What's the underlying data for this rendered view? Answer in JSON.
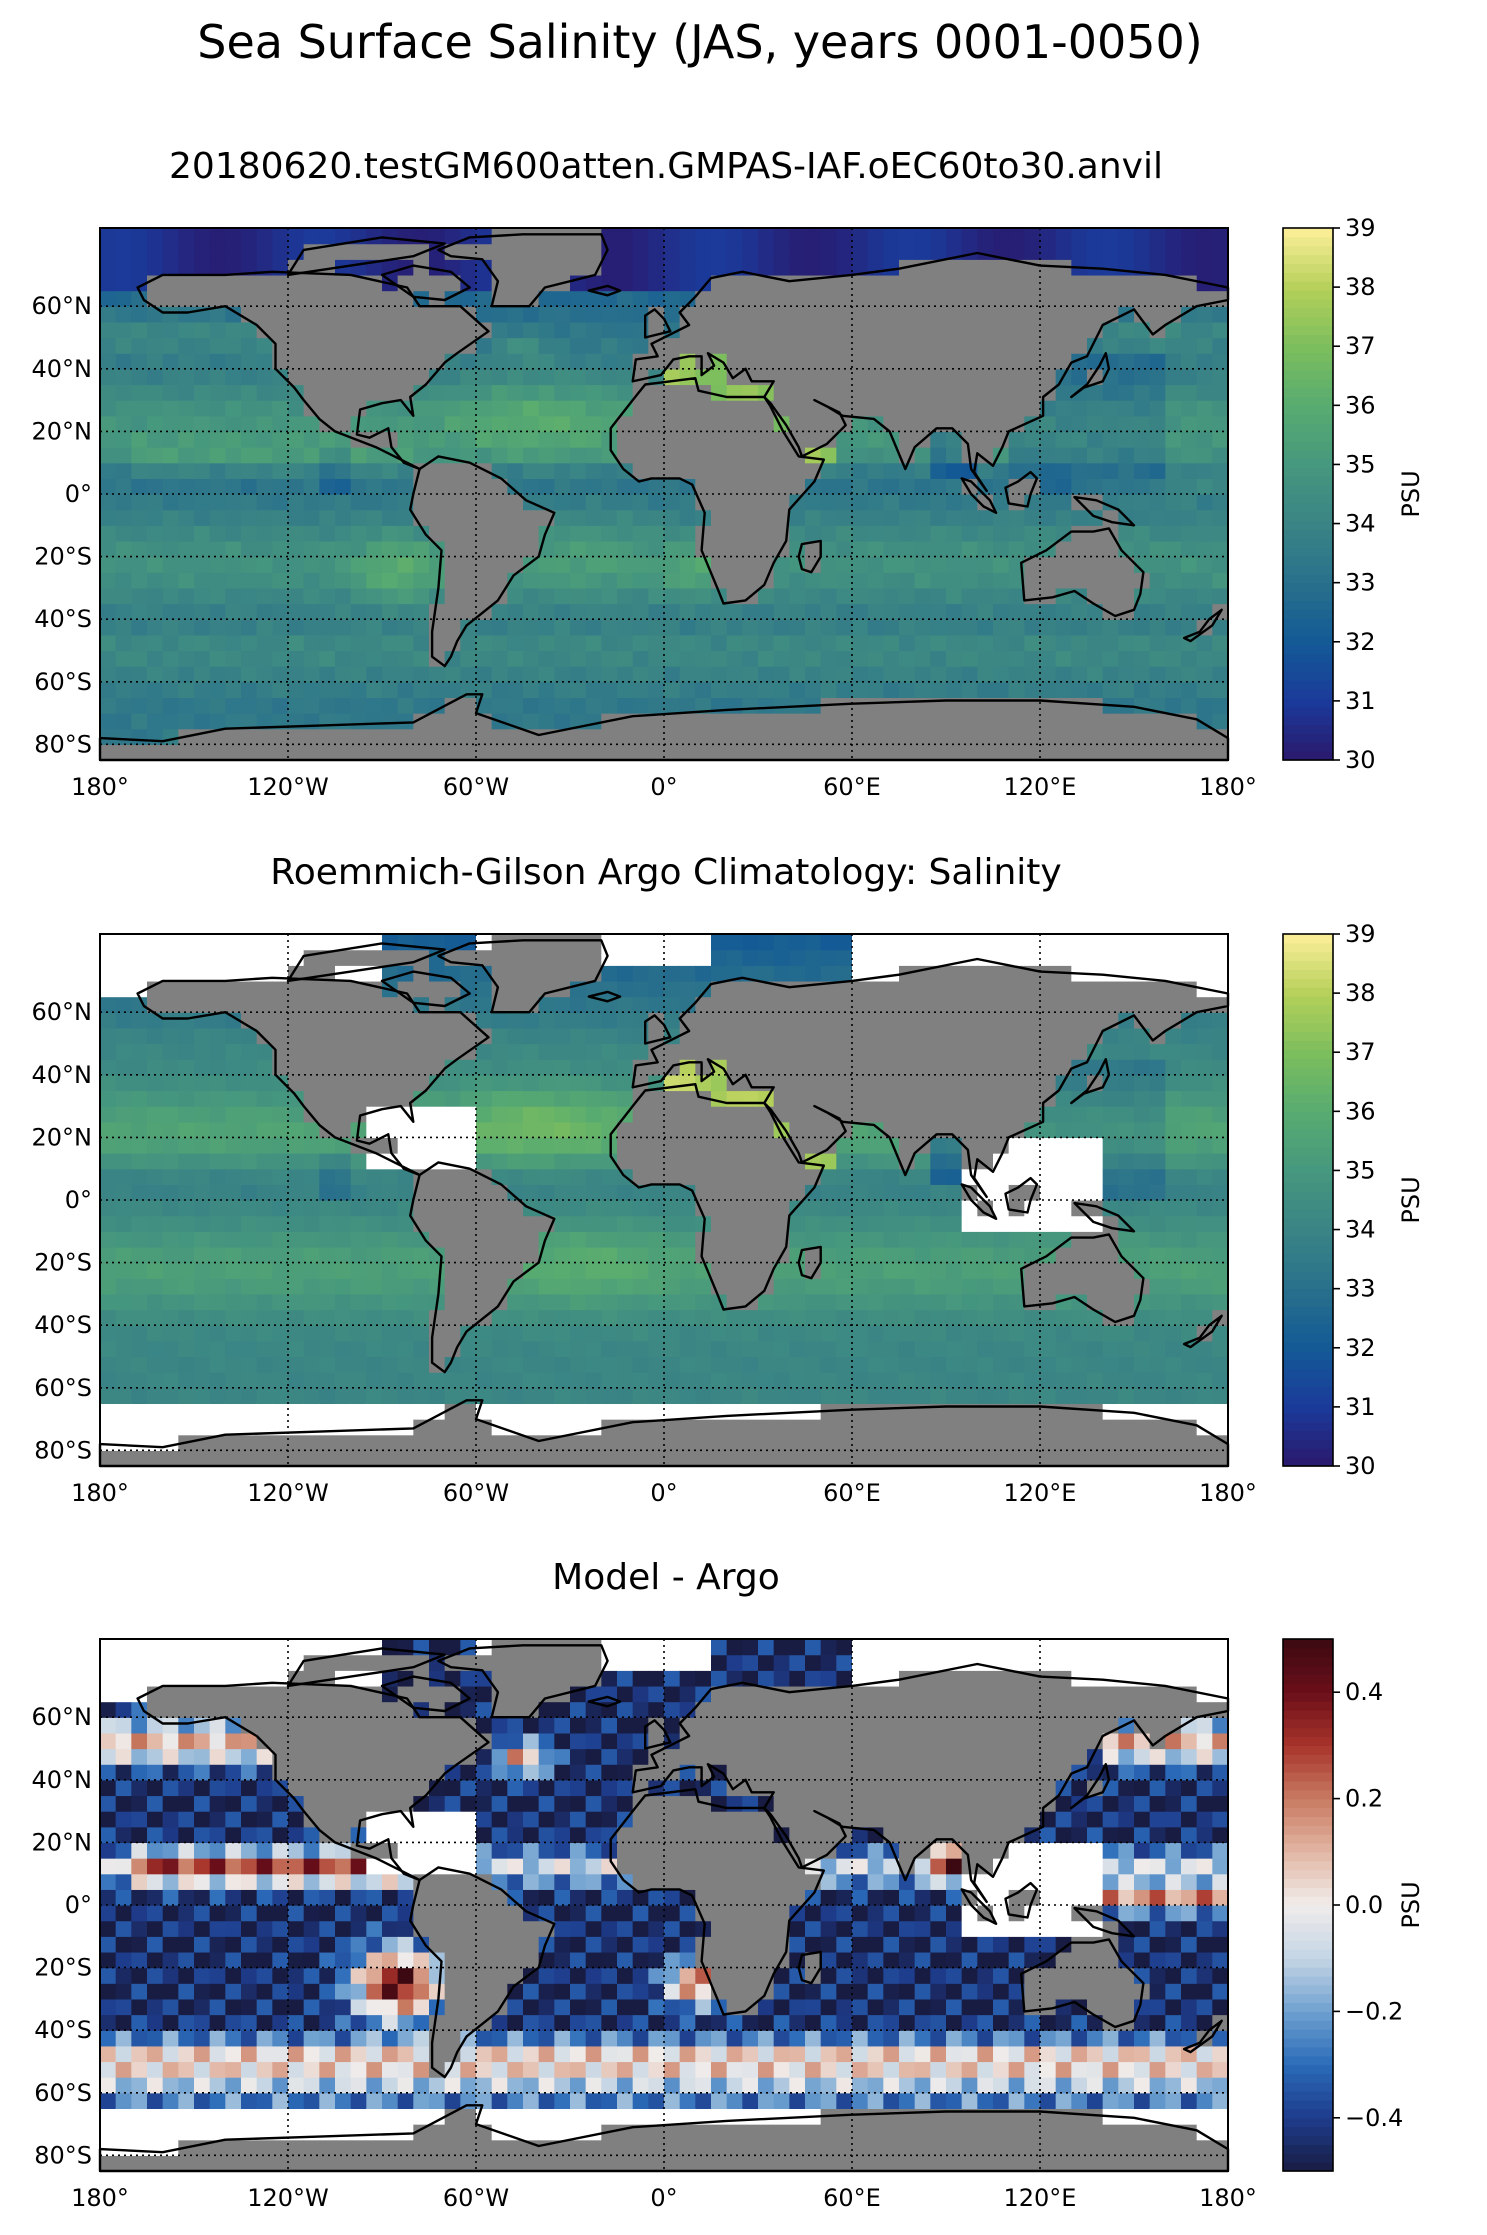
{
  "suptitle": "Sea Surface Salinity (JAS, years 0001-0050)",
  "colors": {
    "land": "#808080",
    "coast": "#000000",
    "no_data": "#ffffff",
    "haline_cmap": [
      "#2a186c",
      "#1b3a9a",
      "#135a96",
      "#29708c",
      "#3a8485",
      "#46977e",
      "#58ab70",
      "#7cbe5d",
      "#b5d05a",
      "#fdef9a"
    ],
    "balance_cmap": [
      "#181c43",
      "#1e3c8c",
      "#2a6ab8",
      "#6fa1d0",
      "#c4d5e4",
      "#f0ecea",
      "#e2b6a4",
      "#c87a61",
      "#a8342b",
      "#6b0f1a",
      "#3c0912"
    ]
  },
  "chart_data": [
    {
      "type": "heatmap",
      "title": "20180620.testGM600atten.GMPAS-IAF.oEC60to30.anvil",
      "xlabel": "",
      "ylabel": "",
      "xlim": [
        -180,
        180
      ],
      "ylim": [
        -85,
        85
      ],
      "grid": true,
      "x_ticks": [
        -180,
        -120,
        -60,
        0,
        60,
        120,
        180
      ],
      "x_tick_labels": [
        "180°",
        "120°W",
        "60°W",
        "0°",
        "60°E",
        "120°E",
        "180°"
      ],
      "y_ticks": [
        60,
        40,
        20,
        0,
        -20,
        -40,
        -60,
        -80
      ],
      "y_tick_labels": [
        "60°N",
        "40°N",
        "20°N",
        "0°",
        "20°S",
        "40°S",
        "60°S",
        "80°S"
      ],
      "colorbar": {
        "label": "PSU",
        "range": [
          30,
          39
        ],
        "ticks": [
          30,
          31,
          32,
          33,
          34,
          35,
          36,
          37,
          38,
          39
        ],
        "tick_labels": [
          "30",
          "31",
          "32",
          "33",
          "34",
          "35",
          "36",
          "37",
          "38",
          "39"
        ],
        "cmap": "haline"
      },
      "field": "model_sss",
      "no_data": []
    },
    {
      "type": "heatmap",
      "title": "Roemmich-Gilson Argo Climatology: Salinity",
      "xlabel": "",
      "ylabel": "",
      "xlim": [
        -180,
        180
      ],
      "ylim": [
        -85,
        85
      ],
      "grid": true,
      "x_ticks": [
        -180,
        -120,
        -60,
        0,
        60,
        120,
        180
      ],
      "x_tick_labels": [
        "180°",
        "120°W",
        "60°W",
        "0°",
        "60°E",
        "120°E",
        "180°"
      ],
      "y_ticks": [
        60,
        40,
        20,
        0,
        -20,
        -40,
        -60,
        -80
      ],
      "y_tick_labels": [
        "60°N",
        "40°N",
        "20°N",
        "0°",
        "20°S",
        "40°S",
        "60°S",
        "80°S"
      ],
      "colorbar": {
        "label": "PSU",
        "range": [
          30,
          39
        ],
        "ticks": [
          30,
          31,
          32,
          33,
          34,
          35,
          36,
          37,
          38,
          39
        ],
        "tick_labels": [
          "30",
          "31",
          "32",
          "33",
          "34",
          "35",
          "36",
          "37",
          "38",
          "39"
        ],
        "cmap": "haline"
      },
      "field": "argo_sss",
      "no_data": [
        {
          "lon": [
            -180,
            180
          ],
          "lat": [
            -85,
            -65
          ]
        },
        {
          "lon": [
            -180,
            -90
          ],
          "lat": [
            64,
            85
          ]
        },
        {
          "lon": [
            -60,
            15
          ],
          "lat": [
            74,
            85
          ]
        },
        {
          "lon": [
            60,
            180
          ],
          "lat": [
            66,
            85
          ]
        },
        {
          "lon": [
            -95,
            -60
          ],
          "lat": [
            10,
            30
          ]
        },
        {
          "lon": [
            95,
            140
          ],
          "lat": [
            -10,
            20
          ]
        }
      ]
    },
    {
      "type": "heatmap",
      "title": "Model - Argo",
      "xlabel": "",
      "ylabel": "",
      "xlim": [
        -180,
        180
      ],
      "ylim": [
        -85,
        85
      ],
      "grid": true,
      "x_ticks": [
        -180,
        -120,
        -60,
        0,
        60,
        120,
        180
      ],
      "x_tick_labels": [
        "180°",
        "120°W",
        "60°W",
        "0°",
        "60°E",
        "120°E",
        "180°"
      ],
      "y_ticks": [
        60,
        40,
        20,
        0,
        -20,
        -40,
        -60,
        -80
      ],
      "y_tick_labels": [
        "60°N",
        "40°N",
        "20°N",
        "0°",
        "20°S",
        "40°S",
        "60°S",
        "80°S"
      ],
      "colorbar": {
        "label": "PSU",
        "range": [
          -0.5,
          0.5
        ],
        "ticks": [
          0.4,
          0.2,
          0.0,
          -0.2,
          -0.4
        ],
        "tick_labels": [
          "0.4",
          "0.2",
          "0.0",
          "−0.2",
          "−0.4"
        ],
        "cmap": "balance"
      },
      "field": "difference",
      "no_data": [
        {
          "lon": [
            -180,
            180
          ],
          "lat": [
            -85,
            -65
          ]
        },
        {
          "lon": [
            -180,
            -90
          ],
          "lat": [
            64,
            85
          ]
        },
        {
          "lon": [
            -60,
            15
          ],
          "lat": [
            74,
            85
          ]
        },
        {
          "lon": [
            60,
            180
          ],
          "lat": [
            66,
            85
          ]
        },
        {
          "lon": [
            -95,
            -60
          ],
          "lat": [
            10,
            30
          ]
        },
        {
          "lon": [
            95,
            140
          ],
          "lat": [
            -10,
            20
          ]
        }
      ]
    }
  ]
}
